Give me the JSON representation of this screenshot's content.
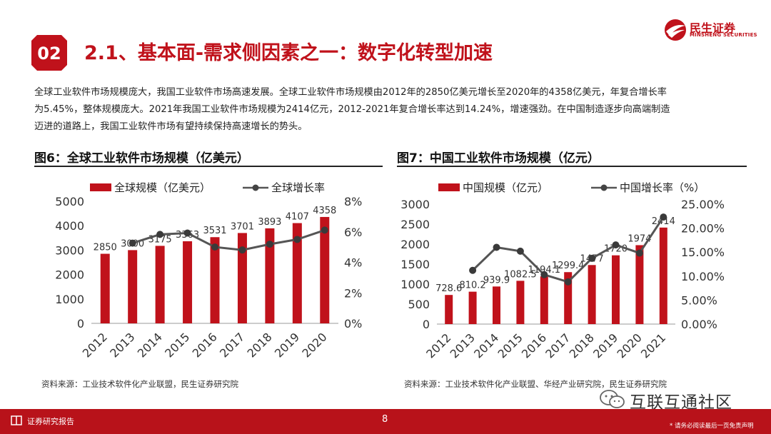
{
  "header": {
    "section_number": "02",
    "title": "2.1、基本面-需求侧因素之一：数字化转型加速",
    "logo_name": "民生证券",
    "logo_subtitle": "MINSHENG SECURITIES"
  },
  "intro_lines": [
    "全球工业软件市场规模庞大，我国工业软件市场高速发展。全球工业软件市场规模由2012年的2850亿美元增长至2020年的4358亿美元，年复合增长率",
    "为5.45%，整体规模庞大。2021年我国工业软件市场规模为2414亿元，2012-2021年复合增长率达到14.24%，增速强劲。在中国制造逐步向高端制造",
    "迈进的道路上，我国工业软件市场有望持续保持高速增长的势头。"
  ],
  "figures": {
    "fig6_title": "图6：全球工业软件市场规模（亿美元）",
    "fig7_title": "图7：中国工业软件市场规模（亿元）",
    "fig6_source": "资料来源：工业技术软件化产业联盟，民生证券研究院",
    "fig7_source": "资料来源：工业技术软件化产业联盟、华经产业研究院，民生证券研究院"
  },
  "colors": {
    "brand": "#c0121b",
    "bar": "#c0121b",
    "line": "#555555"
  },
  "chart_data": [
    {
      "type": "bar",
      "title": "图6：全球工业软件市场规模（亿美元）",
      "categories": [
        "2012",
        "2013",
        "2014",
        "2015",
        "2016",
        "2017",
        "2018",
        "2019",
        "2020"
      ],
      "series": [
        {
          "name": "全球规模（亿美元）",
          "kind": "bar",
          "axis": "left",
          "values": [
            2850,
            3000,
            3175,
            3363,
            3531,
            3701,
            3893,
            4107,
            4358
          ],
          "labels": [
            "2850",
            "3000",
            "3175",
            "3363",
            "3531",
            "3701",
            "3893",
            "4107",
            "4358"
          ]
        },
        {
          "name": "全球增长率",
          "kind": "line",
          "axis": "right",
          "values": [
            null,
            5.26,
            5.83,
            5.92,
            5.0,
            4.81,
            5.19,
            5.5,
            6.11
          ]
        }
      ],
      "left_axis": {
        "min": 0,
        "max": 5000,
        "ticks": [
          0,
          1000,
          2000,
          3000,
          4000,
          5000
        ],
        "tick_labels": [
          "0",
          "1000",
          "2000",
          "3000",
          "4000",
          "5000"
        ]
      },
      "right_axis": {
        "min": 0,
        "max": 8,
        "ticks": [
          0,
          2,
          4,
          6,
          8
        ],
        "tick_labels": [
          "0%",
          "2%",
          "4%",
          "6%",
          "8%"
        ]
      },
      "legend": "top"
    },
    {
      "type": "bar",
      "title": "图7：中国工业软件市场规模（亿元）",
      "categories": [
        "2012",
        "2013",
        "2014",
        "2015",
        "2016",
        "2017",
        "2018",
        "2019",
        "2020",
        "2021"
      ],
      "series": [
        {
          "name": "中国规模（亿元）",
          "kind": "bar",
          "axis": "left",
          "values": [
            728.6,
            810.2,
            939.9,
            1082.5,
            1194.1,
            1299.4,
            1477,
            1720,
            1974,
            2414
          ],
          "labels": [
            "728.6",
            "810.2",
            "939.9",
            "1082.5",
            "1194.1",
            "1299.4",
            "1477",
            "1720",
            "1974",
            "2414"
          ]
        },
        {
          "name": "中国增长率（%）",
          "kind": "line",
          "axis": "right",
          "values": [
            null,
            11.2,
            16.0,
            15.2,
            10.3,
            8.8,
            13.7,
            16.5,
            14.8,
            22.3
          ]
        }
      ],
      "left_axis": {
        "min": 0,
        "max": 3000,
        "ticks": [
          0,
          500,
          1000,
          1500,
          2000,
          2500,
          3000
        ],
        "tick_labels": [
          "0",
          "500",
          "1000",
          "1500",
          "2000",
          "2500",
          "3000"
        ]
      },
      "right_axis": {
        "min": 0,
        "max": 25,
        "ticks": [
          0,
          5,
          10,
          15,
          20,
          25
        ],
        "tick_labels": [
          "0.00%",
          "5.00%",
          "10.00%",
          "15.00%",
          "20.00%",
          "25.00%"
        ]
      },
      "legend": "top"
    }
  ],
  "watermark": {
    "text": "互联互通社区"
  },
  "footer": {
    "label": "证券研究报告",
    "page_number": "8",
    "disclaimer": "* 请务必阅读最后一页免责声明"
  }
}
